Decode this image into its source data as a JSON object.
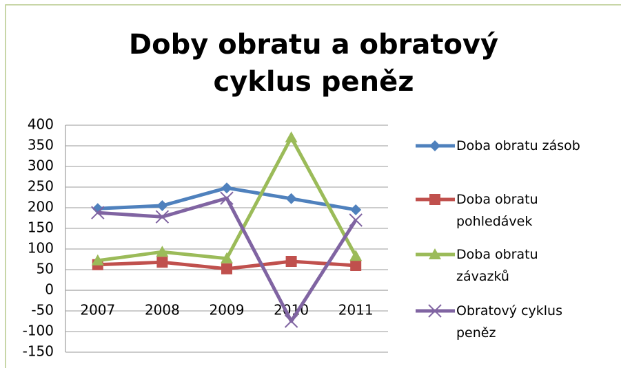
{
  "chart_data": {
    "type": "line",
    "title": "Doby obratu a obratový cyklus peněz",
    "categories": [
      "2007",
      "2008",
      "2009",
      "2010",
      "2011"
    ],
    "series": [
      {
        "name": "Doba obratu zásob",
        "color": "#4f81bd",
        "marker": "diamond",
        "values": [
          198,
          205,
          248,
          222,
          195
        ]
      },
      {
        "name": "Doba obratu pohledávek",
        "color": "#c0504d",
        "marker": "square",
        "values": [
          62,
          68,
          52,
          70,
          60
        ]
      },
      {
        "name": "Doba obratu závazků",
        "color": "#9bbb59",
        "marker": "triangle",
        "values": [
          72,
          93,
          77,
          370,
          83
        ]
      },
      {
        "name": "Obratový cyklus peněz",
        "color": "#8064a2",
        "marker": "x",
        "values": [
          188,
          178,
          223,
          -75,
          170
        ]
      }
    ],
    "ylim": [
      -150,
      400
    ],
    "yticks": [
      -150,
      -100,
      -50,
      0,
      50,
      100,
      150,
      200,
      250,
      300,
      350,
      400
    ],
    "grid": true
  }
}
